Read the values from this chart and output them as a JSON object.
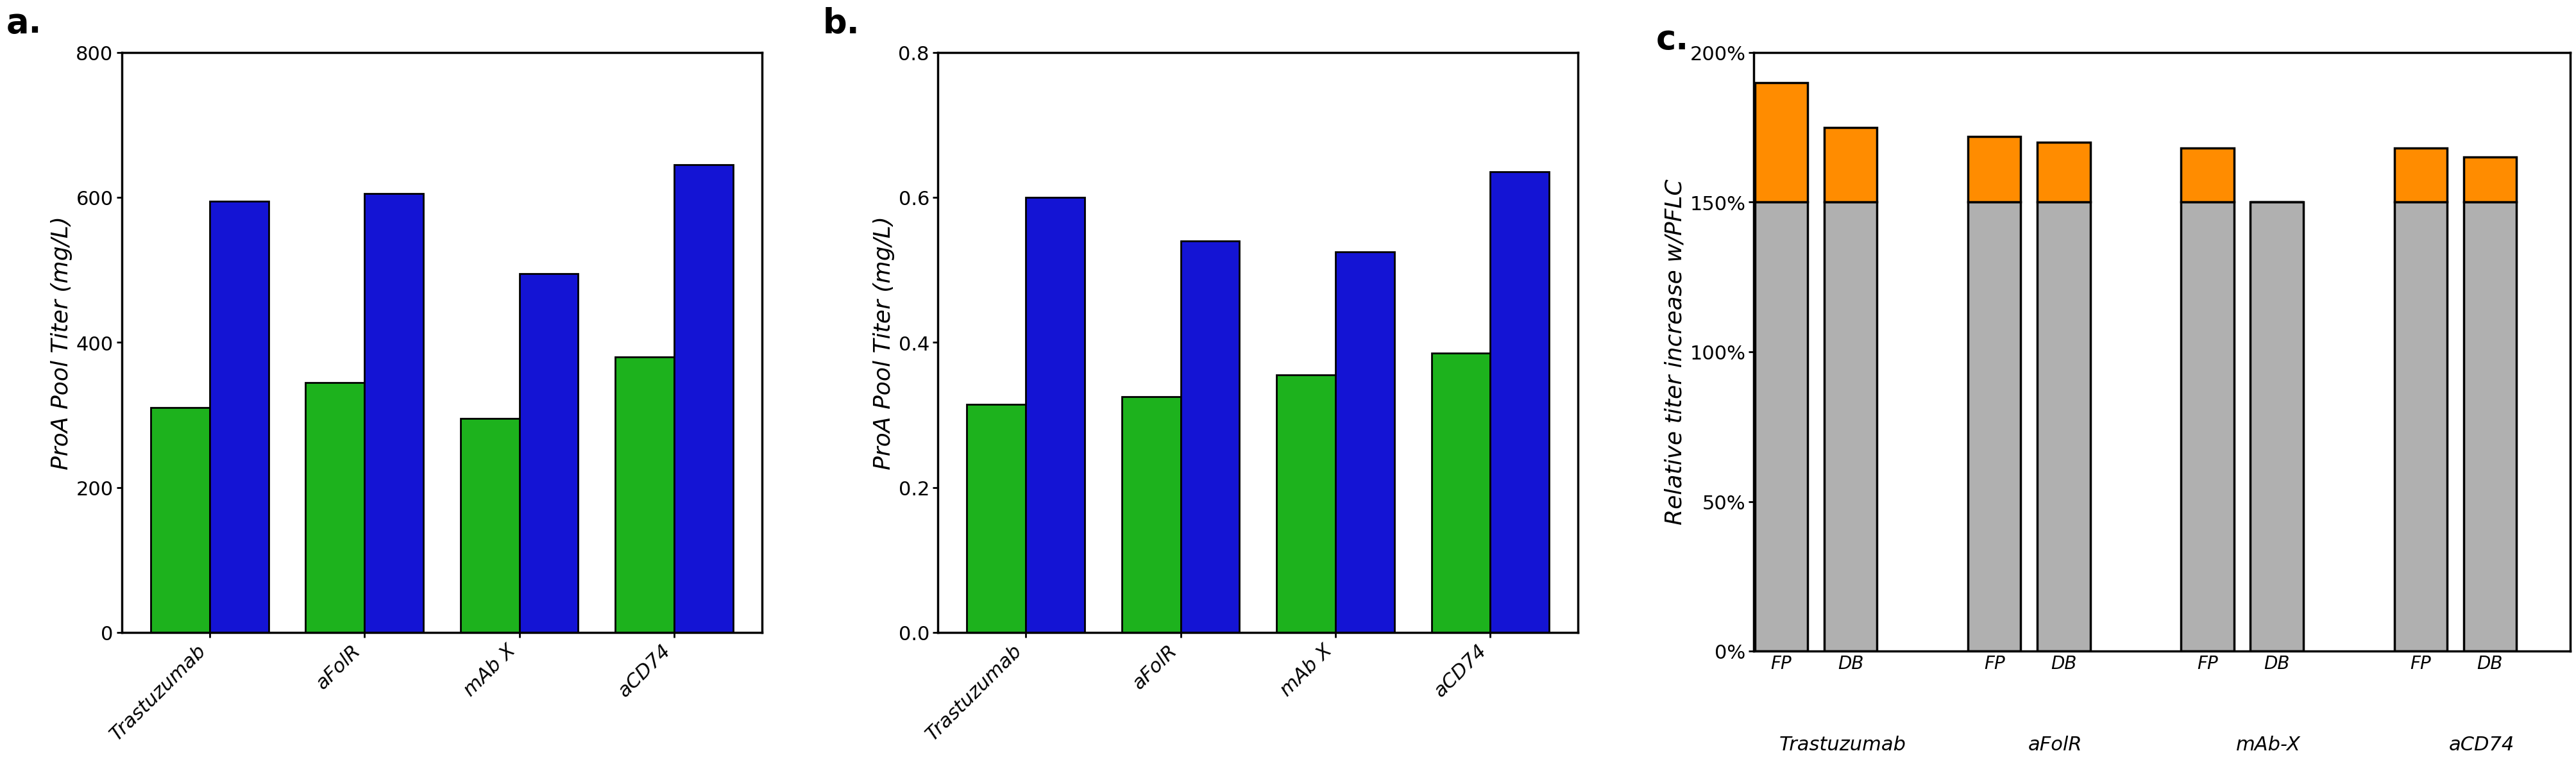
{
  "panel_a": {
    "categories": [
      "Trastuzumab",
      "aFolR",
      "mAb X",
      "aCD74"
    ],
    "green_values": [
      310,
      345,
      295,
      380
    ],
    "blue_values": [
      595,
      605,
      495,
      645
    ],
    "ylabel": "ProA Pool Titer (mg/L)",
    "ylim": [
      0,
      800
    ],
    "yticks": [
      0,
      200,
      400,
      600,
      800
    ],
    "label": "a.",
    "green_color": "#1db21d",
    "blue_color": "#1414d4"
  },
  "panel_b": {
    "categories": [
      "Trastuzumab",
      "aFolR",
      "mAb X",
      "aCD74"
    ],
    "green_values": [
      0.315,
      0.325,
      0.355,
      0.385
    ],
    "blue_values": [
      0.6,
      0.54,
      0.525,
      0.635
    ],
    "ylabel": "ProA Pool Titer (mg/L)",
    "ylim": [
      0,
      0.8
    ],
    "yticks": [
      0.0,
      0.2,
      0.4,
      0.6,
      0.8
    ],
    "label": "b.",
    "green_color": "#1db21d",
    "blue_color": "#1414d4"
  },
  "panel_c": {
    "group_labels": [
      "Trastuzumab",
      "aFolR",
      "mAb-X",
      "aCD74"
    ],
    "bar_labels": [
      "FP",
      "DB"
    ],
    "gray_values": [
      [
        1.5,
        1.5
      ],
      [
        1.5,
        1.5
      ],
      [
        1.5,
        1.5
      ],
      [
        1.5,
        1.5
      ]
    ],
    "orange_values": [
      [
        0.4,
        0.25
      ],
      [
        0.22,
        0.2
      ],
      [
        0.18,
        0.0
      ],
      [
        0.18,
        0.15
      ]
    ],
    "ylabel": "Relative titer increase w/PFLC",
    "ylim": [
      0,
      2.0
    ],
    "yticks": [
      0.0,
      0.5,
      1.0,
      1.5,
      2.0
    ],
    "yticklabels": [
      "0%",
      "50%",
      "100%",
      "150%",
      "200%"
    ],
    "label": "c.",
    "gray_color": "#b0b0b0",
    "orange_color": "#ff8c00"
  }
}
